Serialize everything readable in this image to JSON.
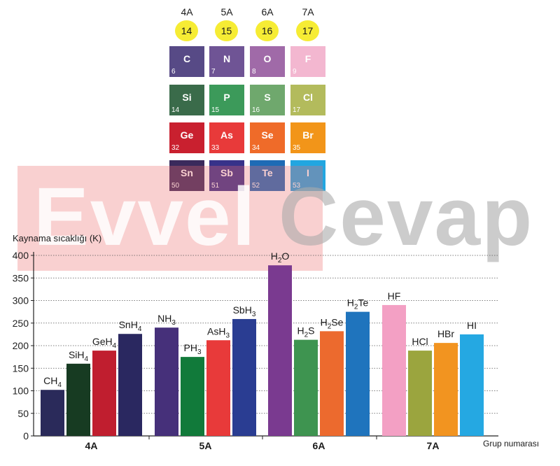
{
  "periodic": {
    "groups": [
      "4A",
      "5A",
      "6A",
      "7A"
    ],
    "group_numbers": [
      "14",
      "15",
      "16",
      "17"
    ],
    "elements": [
      [
        {
          "s": "C",
          "n": "6",
          "c": "#574a86"
        },
        {
          "s": "N",
          "n": "7",
          "c": "#6f5495"
        },
        {
          "s": "O",
          "n": "8",
          "c": "#a06aa8"
        },
        {
          "s": "F",
          "n": "9",
          "c": "#f3b7d0"
        }
      ],
      [
        {
          "s": "Si",
          "n": "14",
          "c": "#3a6b4a"
        },
        {
          "s": "P",
          "n": "15",
          "c": "#3c9a5a"
        },
        {
          "s": "S",
          "n": "16",
          "c": "#6fa86d"
        },
        {
          "s": "Cl",
          "n": "17",
          "c": "#b3bb5c"
        }
      ],
      [
        {
          "s": "Ge",
          "n": "32",
          "c": "#c9202f"
        },
        {
          "s": "As",
          "n": "33",
          "c": "#e83a3a"
        },
        {
          "s": "Se",
          "n": "34",
          "c": "#ef6b29"
        },
        {
          "s": "Br",
          "n": "35",
          "c": "#f29519"
        }
      ],
      [
        {
          "s": "Sn",
          "n": "50",
          "c": "#3a2a5c"
        },
        {
          "s": "Sb",
          "n": "51",
          "c": "#37328a"
        },
        {
          "s": "Te",
          "n": "52",
          "c": "#1e6bb5"
        },
        {
          "s": "I",
          "n": "53",
          "c": "#22a6e0"
        }
      ]
    ]
  },
  "watermark": {
    "part1": "Evvel",
    "part2": "Cevap"
  },
  "chart_data": {
    "type": "bar",
    "ylabel": "Kaynama sıcaklığı (K)",
    "xlabel": "Grup numarası",
    "ylim": [
      0,
      400
    ],
    "yticks": [
      "0",
      "50",
      "100",
      "150",
      "200",
      "250",
      "300",
      "350",
      "400"
    ],
    "grid": "dotted horizontal",
    "groups": [
      {
        "name": "4A",
        "bars": [
          {
            "label": "CH",
            "sub": "4",
            "value": 102,
            "color": "#2a2a5a"
          },
          {
            "label": "SiH",
            "sub": "4",
            "value": 160,
            "color": "#173b22"
          },
          {
            "label": "GeH",
            "sub": "4",
            "value": 189,
            "color": "#c01e2f"
          },
          {
            "label": "SnH",
            "sub": "4",
            "value": 226,
            "color": "#2a2860"
          }
        ]
      },
      {
        "name": "5A",
        "bars": [
          {
            "label": "NH",
            "sub": "3",
            "value": 240,
            "color": "#46307a"
          },
          {
            "label": "PH",
            "sub": "3",
            "value": 175,
            "color": "#117a3a"
          },
          {
            "label": "AsH",
            "sub": "3",
            "value": 212,
            "color": "#e83a3a"
          },
          {
            "label": "SbH",
            "sub": "3",
            "value": 259,
            "color": "#2a3d92"
          }
        ]
      },
      {
        "name": "6A",
        "bars": [
          {
            "label": "H",
            "sub": "2",
            "label2": "O",
            "value": 378,
            "color": "#7a3a90"
          },
          {
            "label": "H",
            "sub": "2",
            "label2": "S",
            "value": 213,
            "color": "#3e9450"
          },
          {
            "label": "H",
            "sub": "2",
            "label2": "Se",
            "value": 232,
            "color": "#ec6a2e"
          },
          {
            "label": "H",
            "sub": "2",
            "label2": "Te",
            "value": 275,
            "color": "#1f74bd"
          }
        ]
      },
      {
        "name": "7A",
        "bars": [
          {
            "label": "HF",
            "value": 290,
            "color": "#f3a0c4"
          },
          {
            "label": "HCl",
            "value": 189,
            "color": "#9ba53e"
          },
          {
            "label": "HBr",
            "value": 206,
            "color": "#f29420"
          },
          {
            "label": "HI",
            "value": 225,
            "color": "#25a8e2"
          }
        ]
      }
    ]
  }
}
